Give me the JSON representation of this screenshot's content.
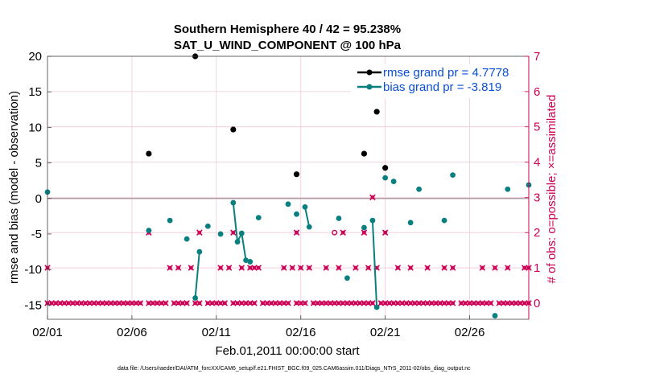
{
  "chart_data": {
    "type": "line",
    "title": "Southern Hemisphere 40 / 42 = 95.238%",
    "subtitle": "SAT_U_WIND_COMPONENT @ 100 hPa",
    "xlabel": "Feb.01,2011 00:00:00 start",
    "ylabel": "rmse and bias (model - observation)",
    "y2label": "# of obs: o=possible; ×=assimilated",
    "footnote": "data file: /Users/raeder/DAI/ATM_forcXX/CAM6_setup/f.e21.FHIST_BGC.f09_025.CAM6assim.011/Diags_NTrS_2011-02/obs_diag_output.nc",
    "xlim": [
      0,
      28.5
    ],
    "ylim": [
      -17,
      20
    ],
    "y2lim": [
      -0.459,
      7
    ],
    "xticks": [
      {
        "value": 0,
        "label": "02/01"
      },
      {
        "value": 5,
        "label": "02/06"
      },
      {
        "value": 10,
        "label": "02/11"
      },
      {
        "value": 15,
        "label": "02/16"
      },
      {
        "value": 20,
        "label": "02/21"
      },
      {
        "value": 25,
        "label": "02/26"
      }
    ],
    "yticks": [
      "20",
      "15",
      "10",
      "5",
      "0",
      "-5",
      "-10",
      "-15"
    ],
    "y2ticks": [
      "7",
      "6",
      "5",
      "4",
      "3",
      "2",
      "1",
      "0"
    ],
    "legend": {
      "rmse": "rmse grand pr = 4.7778",
      "bias": "bias grand pr = -3.819"
    },
    "colors": {
      "rmse": "#000000",
      "bias": "#0a7f7f",
      "counts": "#cc0055",
      "zero_line": "#b09fa5"
    },
    "series": [
      {
        "name": "rmse",
        "points": [
          [
            6.0,
            6.3
          ],
          [
            8.75,
            20.0
          ],
          [
            11.0,
            9.7
          ],
          [
            14.75,
            3.4
          ],
          [
            18.75,
            6.3
          ],
          [
            19.5,
            12.2
          ],
          [
            20.0,
            4.3
          ]
        ]
      },
      {
        "name": "bias",
        "segments": [
          [
            [
              0.0,
              0.9
            ]
          ],
          [
            [
              6.0,
              -4.5
            ]
          ],
          [
            [
              7.25,
              -3.1
            ]
          ],
          [
            [
              8.25,
              -5.7
            ]
          ],
          [
            [
              8.75,
              -14.0
            ],
            [
              9.0,
              -7.5
            ]
          ],
          [
            [
              9.5,
              -3.9
            ]
          ],
          [
            [
              10.25,
              -5.0
            ]
          ],
          [
            [
              11.0,
              -0.6
            ],
            [
              11.25,
              -6.1
            ],
            [
              11.5,
              -4.9
            ],
            [
              11.75,
              -8.7
            ],
            [
              12.0,
              -8.9
            ]
          ],
          [
            [
              12.5,
              -2.7
            ]
          ],
          [
            [
              14.25,
              -0.8
            ]
          ],
          [
            [
              14.75,
              -2.2
            ]
          ],
          [
            [
              15.25,
              -1.2
            ],
            [
              15.5,
              -4.0
            ]
          ],
          [
            [
              17.25,
              -2.8
            ]
          ],
          [
            [
              17.75,
              -11.2
            ]
          ],
          [
            [
              18.75,
              -4.1
            ]
          ],
          [
            [
              19.25,
              -3.1
            ],
            [
              19.5,
              -15.3
            ]
          ],
          [
            [
              20.0,
              2.9
            ]
          ],
          [
            [
              20.5,
              2.4
            ]
          ],
          [
            [
              21.5,
              -3.4
            ]
          ],
          [
            [
              22.0,
              1.3
            ]
          ],
          [
            [
              23.5,
              -3.1
            ]
          ],
          [
            [
              24.0,
              3.3
            ]
          ],
          [
            [
              26.5,
              -16.5
            ]
          ],
          [
            [
              27.25,
              1.3
            ]
          ],
          [
            [
              28.5,
              1.9
            ]
          ]
        ]
      }
    ],
    "obs_counts": {
      "possible": [
        [
          0.0,
          1
        ],
        [
          6.0,
          2
        ],
        [
          7.25,
          1
        ],
        [
          7.75,
          1
        ],
        [
          8.5,
          1
        ],
        [
          9.0,
          2
        ],
        [
          10.25,
          1
        ],
        [
          10.75,
          1
        ],
        [
          11.0,
          2
        ],
        [
          11.5,
          1
        ],
        [
          12.0,
          1
        ],
        [
          12.25,
          1
        ],
        [
          12.5,
          1
        ],
        [
          14.0,
          1
        ],
        [
          14.5,
          1
        ],
        [
          14.75,
          2
        ],
        [
          15.0,
          1
        ],
        [
          15.5,
          1
        ],
        [
          16.5,
          1
        ],
        [
          17.25,
          1
        ],
        [
          17.5,
          2
        ],
        [
          18.25,
          1
        ],
        [
          18.75,
          2
        ],
        [
          19.0,
          1
        ],
        [
          19.25,
          3
        ],
        [
          19.5,
          1
        ],
        [
          20.0,
          2
        ],
        [
          20.75,
          1
        ],
        [
          21.5,
          1
        ],
        [
          22.5,
          1
        ],
        [
          23.5,
          1
        ],
        [
          24.0,
          1
        ],
        [
          25.75,
          1
        ],
        [
          26.5,
          1
        ],
        [
          27.25,
          1
        ],
        [
          28.25,
          1
        ],
        [
          28.5,
          1
        ]
      ],
      "assimilated_zero_x": [
        0,
        0.25,
        0.5,
        0.75,
        1,
        1.25,
        1.5,
        1.75,
        2,
        2.25,
        2.5,
        2.75,
        3,
        3.25,
        3.5,
        3.75,
        4,
        4.25,
        4.5,
        4.75,
        5,
        5.25,
        5.5,
        6,
        6.25,
        6.5,
        6.75,
        7,
        7.5,
        7.75,
        8,
        8.25,
        8.75,
        9,
        9.5,
        9.75,
        10,
        10.25,
        10.5,
        11,
        11.25,
        11.5,
        11.75,
        12,
        12.25,
        12.75,
        13,
        13.25,
        13.5,
        13.75,
        14,
        14.25,
        14.75,
        15,
        15.25,
        15.75,
        16,
        16.25,
        16.5,
        16.75,
        17,
        17.25,
        17.5,
        17.75,
        18,
        18.25,
        18.5,
        18.75,
        19,
        19.25,
        19.75,
        20,
        20.25,
        20.5,
        20.75,
        21,
        21.25,
        21.5,
        21.75,
        22,
        22.25,
        22.5,
        22.75,
        23,
        23.25,
        23.5,
        23.75,
        24,
        24.5,
        24.75,
        25,
        25.25,
        25.5,
        25.75,
        26,
        26.25,
        26.75,
        27,
        27.25,
        27.5,
        27.75,
        28,
        28.25,
        28.5
      ],
      "open_possible": [
        [
          17.0,
          2
        ]
      ]
    }
  }
}
